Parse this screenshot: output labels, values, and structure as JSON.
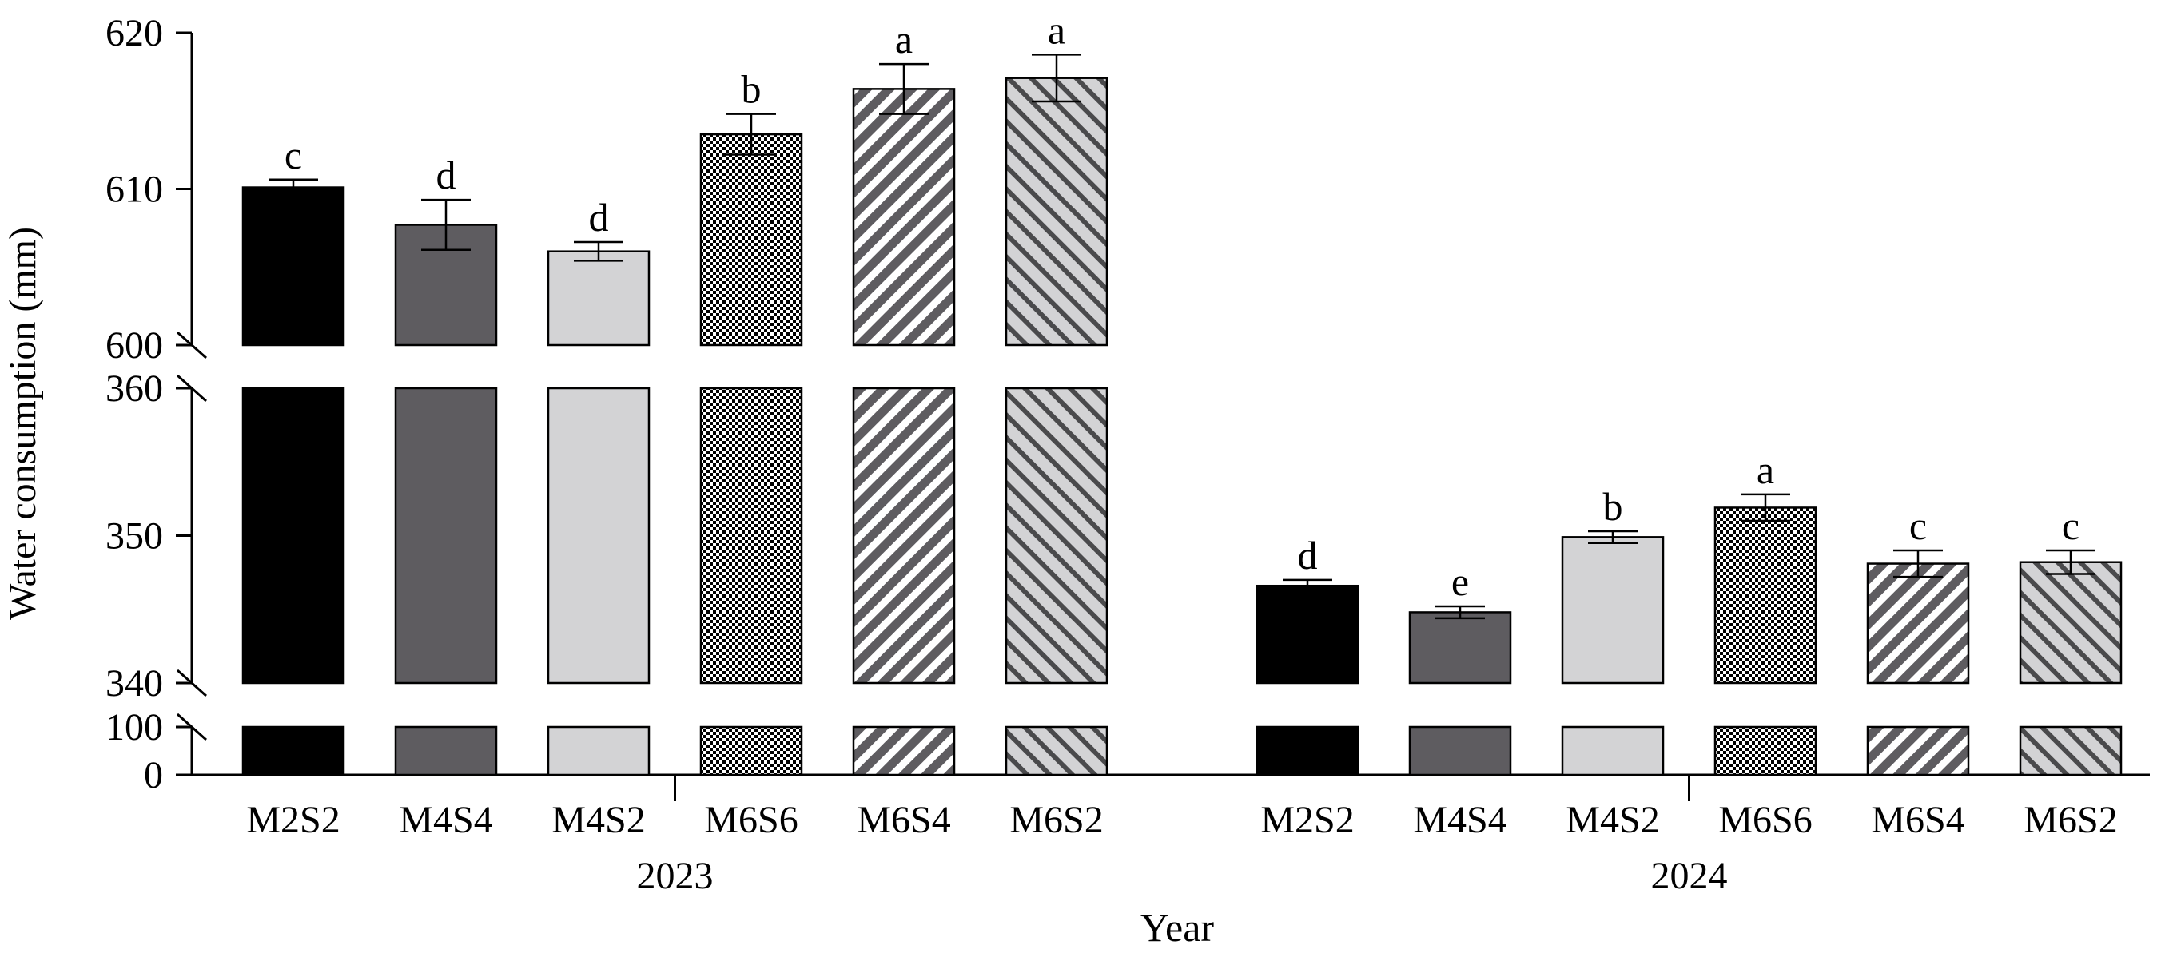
{
  "chart_data": {
    "type": "bar",
    "ylabel": "Water consumption (mm)",
    "xlabel": "Year",
    "broken_axis": {
      "segments": [
        {
          "ylim": [
            600,
            620
          ],
          "ticks": [
            600,
            610,
            620
          ]
        },
        {
          "ylim": [
            340,
            360
          ],
          "ticks": [
            340,
            350,
            360
          ]
        },
        {
          "ylim": [
            0,
            100
          ],
          "ticks": [
            0,
            100
          ]
        }
      ]
    },
    "groups": [
      {
        "name": "2023",
        "bars": [
          {
            "treatment": "M2S2",
            "value": 610.1,
            "error": 0.5,
            "letter": "c",
            "pattern": "black"
          },
          {
            "treatment": "M4S4",
            "value": 607.7,
            "error": 1.6,
            "letter": "d",
            "pattern": "darkgray"
          },
          {
            "treatment": "M4S2",
            "value": 606.0,
            "error": 0.6,
            "letter": "d",
            "pattern": "lightgray"
          },
          {
            "treatment": "M6S6",
            "value": 613.5,
            "error": 1.3,
            "letter": "b",
            "pattern": "checker"
          },
          {
            "treatment": "M6S4",
            "value": 616.4,
            "error": 1.6,
            "letter": "a",
            "pattern": "diag-dark"
          },
          {
            "treatment": "M6S2",
            "value": 617.1,
            "error": 1.5,
            "letter": "a",
            "pattern": "diag-light"
          }
        ]
      },
      {
        "name": "2024",
        "bars": [
          {
            "treatment": "M2S2",
            "value": 346.6,
            "error": 0.4,
            "letter": "d",
            "pattern": "black"
          },
          {
            "treatment": "M4S4",
            "value": 344.8,
            "error": 0.4,
            "letter": "e",
            "pattern": "darkgray"
          },
          {
            "treatment": "M4S2",
            "value": 349.9,
            "error": 0.4,
            "letter": "b",
            "pattern": "lightgray"
          },
          {
            "treatment": "M6S6",
            "value": 351.9,
            "error": 0.9,
            "letter": "a",
            "pattern": "checker"
          },
          {
            "treatment": "M6S4",
            "value": 348.1,
            "error": 0.9,
            "letter": "c",
            "pattern": "diag-dark"
          },
          {
            "treatment": "M6S2",
            "value": 348.2,
            "error": 0.8,
            "letter": "c",
            "pattern": "diag-light"
          }
        ]
      }
    ]
  }
}
